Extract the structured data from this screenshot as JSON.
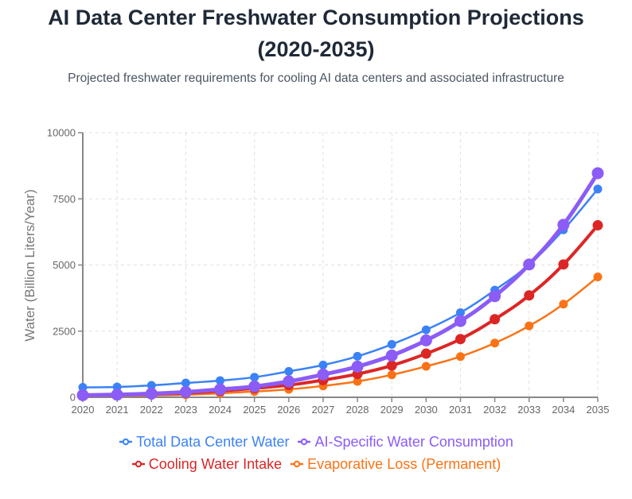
{
  "header": {
    "title_line1": "AI Data Center Freshwater Consumption Projections",
    "title_line2": "(2020-2035)",
    "subtitle": "Projected freshwater requirements for cooling AI data centers and associated infrastructure"
  },
  "chart_data": {
    "type": "line",
    "title": "AI Data Center Freshwater Consumption Projections (2020-2035)",
    "subtitle": "Projected freshwater requirements for cooling AI data centers and associated infrastructure",
    "xlabel": "",
    "ylabel": "Water (Billion Liters/Year)",
    "x": [
      "2020",
      "2021",
      "2022",
      "2023",
      "2024",
      "2025",
      "2026",
      "2027",
      "2028",
      "2029",
      "2030",
      "2031",
      "2032",
      "2033",
      "2034",
      "2035"
    ],
    "ylim": [
      0,
      10000
    ],
    "yticks": [
      "0",
      "2500",
      "5000",
      "7500",
      "10000"
    ],
    "grid": true,
    "legend_position": "bottom",
    "series": [
      {
        "name": "Total Data Center Water",
        "color": "#3b82f6",
        "values": [
          375,
          390,
          450,
          540,
          630,
          760,
          980,
          1220,
          1550,
          2000,
          2550,
          3200,
          4050,
          5020,
          6330,
          7870
        ]
      },
      {
        "name": "AI-Specific Water Consumption",
        "color": "#8b5cf6",
        "values": [
          80,
          100,
          140,
          200,
          300,
          410,
          600,
          860,
          1160,
          1580,
          2150,
          2880,
          3820,
          5020,
          6520,
          8470
        ]
      },
      {
        "name": "Cooling Water Intake",
        "color": "#dc2626",
        "values": [
          65,
          85,
          115,
          160,
          240,
          340,
          460,
          650,
          880,
          1200,
          1650,
          2200,
          2950,
          3850,
          5020,
          6500
        ]
      },
      {
        "name": "Evaporative Loss (Permanent)",
        "color": "#f97316",
        "values": [
          45,
          55,
          70,
          95,
          150,
          220,
          300,
          430,
          600,
          850,
          1170,
          1540,
          2050,
          2700,
          3520,
          4550
        ]
      }
    ]
  }
}
